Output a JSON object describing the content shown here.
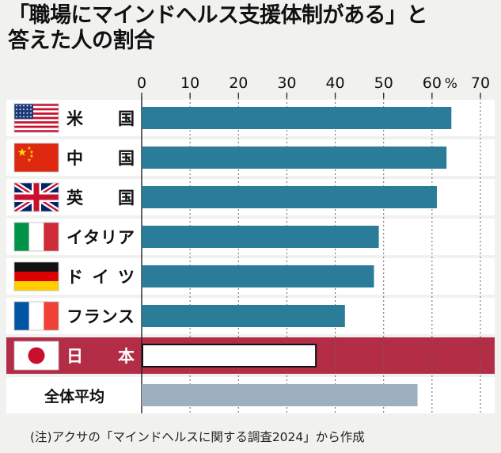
{
  "title_lines": [
    "「職場にマインドヘルス支援体制がある」と",
    "答えた人の割合"
  ],
  "note": "(注)アクサの「マインドヘルスに関する調査2024」から作成",
  "chart_data": {
    "type": "bar",
    "orientation": "horizontal",
    "title": "「職場にマインドヘルス支援体制がある」と答えた人の割合",
    "categories": [
      "米　国",
      "中　国",
      "英　国",
      "イタリア",
      "ドイツ",
      "フランス",
      "日　本",
      "全体平均"
    ],
    "values": [
      64,
      63,
      61,
      49,
      48,
      42,
      36,
      57
    ],
    "flags": [
      "us",
      "cn",
      "gb",
      "it",
      "de",
      "fr",
      "jp",
      null
    ],
    "xlim": [
      0,
      70
    ],
    "ticks": [
      "0",
      "10",
      "20",
      "30",
      "40",
      "50",
      "60",
      "70"
    ],
    "unit": "%",
    "grid": true,
    "highlight": "日　本",
    "colors": {
      "bar": "#2a7c99",
      "highlight_fill": "#ffffff",
      "highlight_row": "#b22d45",
      "average": "#9eafbf"
    }
  }
}
